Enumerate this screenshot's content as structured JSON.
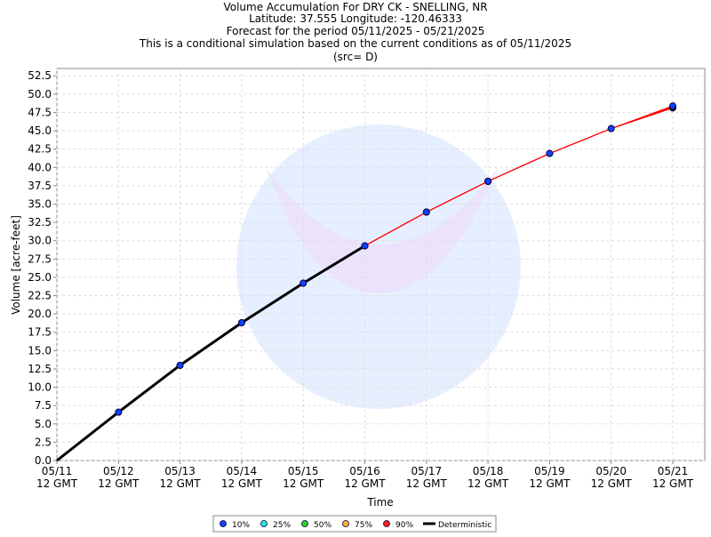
{
  "chart_data": {
    "type": "line",
    "title": "Volume Accumulation For DRY CK - SNELLING, NR",
    "subtitle": [
      "Latitude: 37.555 Longitude: -120.46333",
      "Forecast for the period 05/11/2025 - 05/21/2025",
      "This is a conditional simulation based on the current conditions as of 05/11/2025",
      "(src= D)"
    ],
    "xlabel": "Time",
    "ylabel": "Volume [acre-feet]",
    "x": [
      [
        "05/11",
        "12 GMT"
      ],
      [
        "05/12",
        "12 GMT"
      ],
      [
        "05/13",
        "12 GMT"
      ],
      [
        "05/14",
        "12 GMT"
      ],
      [
        "05/15",
        "12 GMT"
      ],
      [
        "05/16",
        "12 GMT"
      ],
      [
        "05/17",
        "12 GMT"
      ],
      [
        "05/18",
        "12 GMT"
      ],
      [
        "05/19",
        "12 GMT"
      ],
      [
        "05/20",
        "12 GMT"
      ],
      [
        "05/21",
        "12 GMT"
      ]
    ],
    "ylim": [
      0,
      53.5
    ],
    "yticks": [
      {
        "value": 0,
        "label": "0.0"
      },
      2.5,
      {
        "value": 5,
        "label": "5.0"
      },
      7.5,
      {
        "value": 10,
        "label": "10.0"
      },
      12.5,
      {
        "value": 15,
        "label": "15.0"
      },
      17.5,
      {
        "value": 20,
        "label": "20.0"
      },
      22.5,
      {
        "value": 25,
        "label": "25.0"
      },
      27.5,
      {
        "value": 30,
        "label": "30.0"
      },
      32.5,
      {
        "value": 35,
        "label": "35.0"
      },
      37.5,
      {
        "value": 40,
        "label": "40.0"
      },
      42.5,
      {
        "value": 45,
        "label": "45.0"
      },
      47.5,
      {
        "value": 50,
        "label": "50.0"
      },
      52.5
    ],
    "grid": true,
    "legend": "bottom",
    "line_color": "#ff0000",
    "series": [
      {
        "name": "90%",
        "color": "#ff2020",
        "values": [
          0,
          6.6,
          13.0,
          18.8,
          24.2,
          29.3,
          33.9,
          38.1,
          41.9,
          45.3,
          48.1
        ]
      },
      {
        "name": "75%",
        "color": "#ffb030",
        "values": [
          0,
          6.6,
          13.0,
          18.8,
          24.2,
          29.3,
          33.9,
          38.1,
          41.9,
          45.3,
          48.2
        ]
      },
      {
        "name": "50%",
        "color": "#30d030",
        "values": [
          0,
          6.6,
          13.0,
          18.8,
          24.2,
          29.3,
          33.9,
          38.1,
          41.9,
          45.3,
          48.3
        ]
      },
      {
        "name": "25%",
        "color": "#30e0e0",
        "values": [
          0,
          6.6,
          13.0,
          18.8,
          24.2,
          29.3,
          33.9,
          38.1,
          41.9,
          45.3,
          48.3
        ]
      },
      {
        "name": "10%",
        "color": "#1040ff",
        "values": [
          0,
          6.6,
          13.0,
          18.8,
          24.2,
          29.3,
          33.9,
          38.1,
          41.9,
          45.3,
          48.4
        ]
      },
      {
        "name": "Deterministic",
        "color": "#000000",
        "values": [
          0,
          6.6,
          13.0,
          18.8,
          24.2,
          29.3,
          null,
          null,
          null,
          null,
          null
        ]
      }
    ]
  }
}
